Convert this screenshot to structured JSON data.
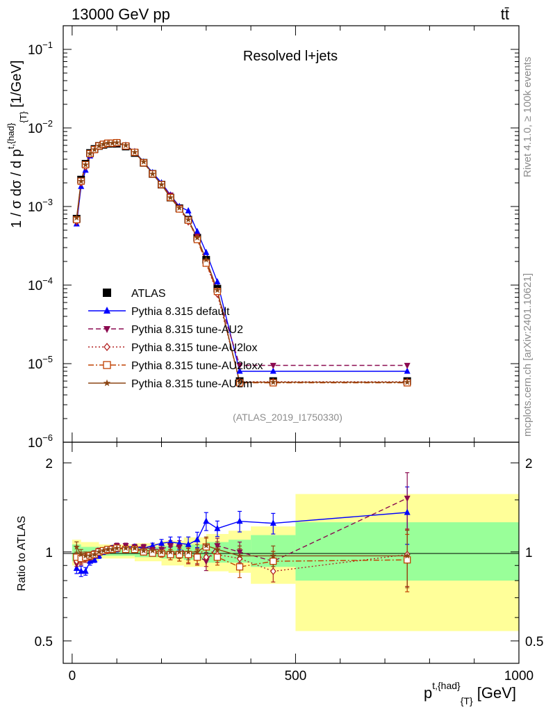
{
  "header": {
    "energy_label": "13000 GeV pp",
    "process_label": "tt̄"
  },
  "side_labels": {
    "rivet": "Rivet 4.1.0, ≥ 100k events",
    "mcplots": "mcplots.cern.ch [arXiv:2401.10621]"
  },
  "colors": {
    "data": "#000000",
    "default": "#0000ff",
    "au2": "#8b0a50",
    "au2lox": "#b22222",
    "au2loxx": "#c04000",
    "au2m": "#8b4513",
    "band_inner": "#99ff99",
    "band_outer": "#ffff99"
  },
  "chart_data": [
    {
      "type": "scatter",
      "panel": "main",
      "title": "Resolved l+jets",
      "analysis_label": "(ATLAS_2019_I1750330)",
      "ylabel": "1 / σ dσ / d p^{t,{had}}_{T} [1/GeV]",
      "ylabel_parts": {
        "base": "1 / σ dσ / d p",
        "sup": "t,{had}",
        "sub": "{T}",
        "unit": "[1/GeV]"
      },
      "yscale": "log",
      "ylim": [
        1e-06,
        0.2
      ],
      "y_ticks": [
        {
          "value": 1e-06,
          "label": "10",
          "exp": "−6"
        },
        {
          "value": 1e-05,
          "label": "10",
          "exp": "−5"
        },
        {
          "value": 0.0001,
          "label": "10",
          "exp": "−4"
        },
        {
          "value": 0.001,
          "label": "10",
          "exp": "−3"
        },
        {
          "value": 0.01,
          "label": "10",
          "exp": "−2"
        },
        {
          "value": 0.1,
          "label": "10",
          "exp": "−1"
        }
      ],
      "xlim": [
        -20,
        1000
      ],
      "legend_position": "lower-left",
      "x": [
        10,
        20,
        30,
        40,
        50,
        60,
        70,
        80,
        90,
        100,
        120,
        140,
        160,
        180,
        200,
        220,
        240,
        260,
        280,
        300,
        325,
        375,
        450,
        750
      ],
      "series": [
        {
          "name": "ATLAS",
          "key": "data",
          "marker": "square",
          "values": [
            0.0007,
            0.0022,
            0.0035,
            0.0048,
            0.0054,
            0.0059,
            0.0061,
            0.0063,
            0.0063,
            0.0063,
            0.0058,
            0.0048,
            0.0036,
            0.0026,
            0.0019,
            0.0013,
            0.00095,
            0.00068,
            0.0004,
            0.00021,
            9e-05,
            6e-06,
            6e-06,
            6e-06
          ]
        },
        {
          "name": "Pythia 8.315 default",
          "key": "default",
          "marker": "triangle-up",
          "line": "solid",
          "values": [
            0.0006,
            0.0018,
            0.0029,
            0.0044,
            0.0052,
            0.0058,
            0.0062,
            0.0064,
            0.0064,
            0.0064,
            0.006,
            0.005,
            0.0037,
            0.0027,
            0.002,
            0.0014,
            0.001,
            0.00088,
            0.00048,
            0.00026,
            0.00011,
            8e-06,
            8e-06,
            8e-06
          ]
        },
        {
          "name": "Pythia 8.315 tune-AU2",
          "key": "au2",
          "marker": "triangle-down",
          "line": "dashed",
          "values": [
            0.00063,
            0.002,
            0.0033,
            0.0046,
            0.0053,
            0.0059,
            0.0062,
            0.0064,
            0.0064,
            0.0065,
            0.006,
            0.0049,
            0.0037,
            0.0026,
            0.0019,
            0.0014,
            0.00097,
            0.00065,
            0.00042,
            0.0002,
            8e-05,
            9.5e-06,
            9.5e-06,
            9.5e-06
          ]
        },
        {
          "name": "Pythia 8.315 tune-AU2lox",
          "key": "au2lox",
          "marker": "diamond-open",
          "line": "dotted",
          "values": [
            0.00065,
            0.002,
            0.0032,
            0.0046,
            0.0053,
            0.0059,
            0.0062,
            0.0064,
            0.0064,
            0.0065,
            0.0059,
            0.0049,
            0.0036,
            0.0026,
            0.0019,
            0.0013,
            0.00093,
            0.00064,
            0.0004,
            0.00019,
            7.7e-05,
            5.9e-06,
            5.9e-06,
            5.9e-06
          ]
        },
        {
          "name": "Pythia 8.315 tune-AU2loxx",
          "key": "au2loxx",
          "marker": "square-open",
          "line": "dashdot",
          "values": [
            0.00068,
            0.0021,
            0.0034,
            0.0047,
            0.0053,
            0.0059,
            0.0062,
            0.0064,
            0.0064,
            0.0065,
            0.0059,
            0.0049,
            0.0036,
            0.0026,
            0.0019,
            0.0013,
            0.00093,
            0.00067,
            0.00038,
            0.00019,
            8.3e-05,
            5.7e-06,
            5.7e-06,
            5.7e-06
          ]
        },
        {
          "name": "Pythia 8.315 tune-AU2m",
          "key": "au2m",
          "marker": "star",
          "line": "solid",
          "values": [
            0.00072,
            0.0021,
            0.0034,
            0.0047,
            0.0053,
            0.0059,
            0.0062,
            0.0064,
            0.0064,
            0.0065,
            0.006,
            0.0049,
            0.0037,
            0.0026,
            0.0019,
            0.0013,
            0.00096,
            0.00068,
            0.0004,
            0.00021,
            8.6e-05,
            5.8e-06,
            5.8e-06,
            5.8e-06
          ]
        }
      ],
      "legend_order": [
        "data",
        "default",
        "au2",
        "au2lox",
        "au2loxx",
        "au2m"
      ]
    },
    {
      "type": "scatter",
      "panel": "ratio",
      "ylabel": "Ratio to ATLAS",
      "yscale": "log",
      "ylim": [
        0.42,
        2.35
      ],
      "y_ticks": [
        0.5,
        1,
        2
      ],
      "y_tick_labels": [
        "0.5",
        "1",
        "2"
      ],
      "xlabel": "p^{t,{had}}_{T} [GeV]",
      "xlabel_parts": {
        "base": "p",
        "sup": "t,{had}",
        "sub": "{T}",
        "unit": "[GeV]"
      },
      "xlim": [
        -20,
        1000
      ],
      "x_ticks": [
        0,
        500,
        1000
      ],
      "x_tick_labels": [
        "0",
        "500",
        "1000"
      ],
      "bins": [
        {
          "lo": 0,
          "hi": 20,
          "inner": [
            0.93,
            1.06
          ],
          "outer": [
            0.9,
            1.1
          ]
        },
        {
          "lo": 20,
          "hi": 60,
          "inner": [
            0.96,
            1.04
          ],
          "outer": [
            0.93,
            1.08
          ]
        },
        {
          "lo": 60,
          "hi": 140,
          "inner": [
            0.97,
            1.03
          ],
          "outer": [
            0.95,
            1.06
          ]
        },
        {
          "lo": 140,
          "hi": 200,
          "inner": [
            0.96,
            1.04
          ],
          "outer": [
            0.93,
            1.07
          ]
        },
        {
          "lo": 200,
          "hi": 250,
          "inner": [
            0.95,
            1.05
          ],
          "outer": [
            0.9,
            1.09
          ]
        },
        {
          "lo": 250,
          "hi": 300,
          "inner": [
            0.94,
            1.06
          ],
          "outer": [
            0.89,
            1.12
          ]
        },
        {
          "lo": 300,
          "hi": 350,
          "inner": [
            0.92,
            1.08
          ],
          "outer": [
            0.86,
            1.15
          ]
        },
        {
          "lo": 350,
          "hi": 400,
          "inner": [
            0.92,
            1.1
          ],
          "outer": [
            0.85,
            1.18
          ]
        },
        {
          "lo": 400,
          "hi": 500,
          "inner": [
            0.89,
            1.14
          ],
          "outer": [
            0.78,
            1.22
          ]
        },
        {
          "lo": 500,
          "hi": 1000,
          "inner": [
            0.8,
            1.26
          ],
          "outer": [
            0.54,
            1.57
          ]
        }
      ],
      "x": [
        10,
        20,
        30,
        40,
        50,
        60,
        70,
        80,
        90,
        100,
        120,
        140,
        160,
        180,
        200,
        220,
        240,
        260,
        280,
        300,
        325,
        375,
        450,
        750
      ],
      "series": [
        {
          "key": "default",
          "values": [
            0.88,
            0.86,
            0.86,
            0.93,
            0.94,
            0.97,
            1.0,
            1.02,
            1.03,
            1.02,
            1.04,
            1.04,
            1.03,
            1.05,
            1.07,
            1.08,
            1.07,
            1.06,
            1.1,
            1.27,
            1.2,
            1.27,
            1.25,
            1.36
          ],
          "err": [
            0.04,
            0.04,
            0.03,
            0.03,
            0.02,
            0.02,
            0.02,
            0.02,
            0.02,
            0.02,
            0.02,
            0.02,
            0.02,
            0.02,
            0.03,
            0.04,
            0.05,
            0.06,
            0.06,
            0.07,
            0.06,
            0.08,
            0.08,
            0.22
          ]
        },
        {
          "key": "au2",
          "values": [
            0.91,
            0.94,
            0.97,
            0.96,
            0.99,
            1.01,
            1.01,
            1.02,
            1.03,
            1.05,
            1.05,
            1.04,
            1.04,
            1.02,
            1.02,
            1.05,
            1.04,
            0.97,
            0.97,
            0.93,
            1.05,
            1.0,
            0.93,
            1.52
          ],
          "err": [
            0.04,
            0.04,
            0.03,
            0.03,
            0.02,
            0.02,
            0.02,
            0.02,
            0.02,
            0.02,
            0.02,
            0.02,
            0.02,
            0.02,
            0.03,
            0.04,
            0.05,
            0.06,
            0.06,
            0.07,
            0.06,
            0.08,
            0.08,
            0.22
          ]
        },
        {
          "key": "au2lox",
          "values": [
            0.93,
            0.96,
            0.95,
            0.96,
            0.98,
            1.0,
            1.01,
            1.01,
            1.02,
            1.03,
            1.02,
            1.02,
            1.0,
            1.0,
            0.99,
            0.98,
            0.98,
            0.97,
            0.96,
            0.96,
            0.98,
            0.95,
            0.86,
            0.98
          ],
          "err": [
            0.04,
            0.04,
            0.03,
            0.03,
            0.02,
            0.02,
            0.02,
            0.02,
            0.02,
            0.02,
            0.02,
            0.02,
            0.02,
            0.02,
            0.03,
            0.04,
            0.05,
            0.06,
            0.06,
            0.07,
            0.06,
            0.08,
            0.08,
            0.22
          ]
        },
        {
          "key": "au2loxx",
          "values": [
            0.96,
            0.95,
            0.96,
            0.97,
            0.98,
            1.0,
            1.01,
            1.02,
            1.02,
            1.03,
            1.02,
            1.02,
            1.0,
            0.99,
            0.99,
            0.98,
            0.98,
            0.98,
            0.96,
            1.04,
            0.96,
            0.89,
            0.93,
            0.94
          ],
          "err": [
            0.04,
            0.04,
            0.03,
            0.03,
            0.02,
            0.02,
            0.02,
            0.02,
            0.02,
            0.02,
            0.02,
            0.02,
            0.02,
            0.02,
            0.03,
            0.04,
            0.05,
            0.06,
            0.06,
            0.07,
            0.06,
            0.08,
            0.08,
            0.22
          ]
        },
        {
          "key": "au2m",
          "values": [
            1.04,
            0.98,
            0.97,
            0.97,
            0.98,
            1.0,
            1.01,
            1.02,
            1.02,
            1.03,
            1.03,
            1.03,
            1.01,
            1.01,
            1.0,
            1.0,
            1.0,
            1.0,
            1.0,
            1.05,
            1.02,
            0.97,
            0.97,
            0.97
          ],
          "err": [
            0.04,
            0.04,
            0.03,
            0.03,
            0.02,
            0.02,
            0.02,
            0.02,
            0.02,
            0.02,
            0.02,
            0.02,
            0.02,
            0.02,
            0.03,
            0.04,
            0.05,
            0.06,
            0.06,
            0.07,
            0.06,
            0.08,
            0.08,
            0.22
          ]
        }
      ]
    }
  ]
}
